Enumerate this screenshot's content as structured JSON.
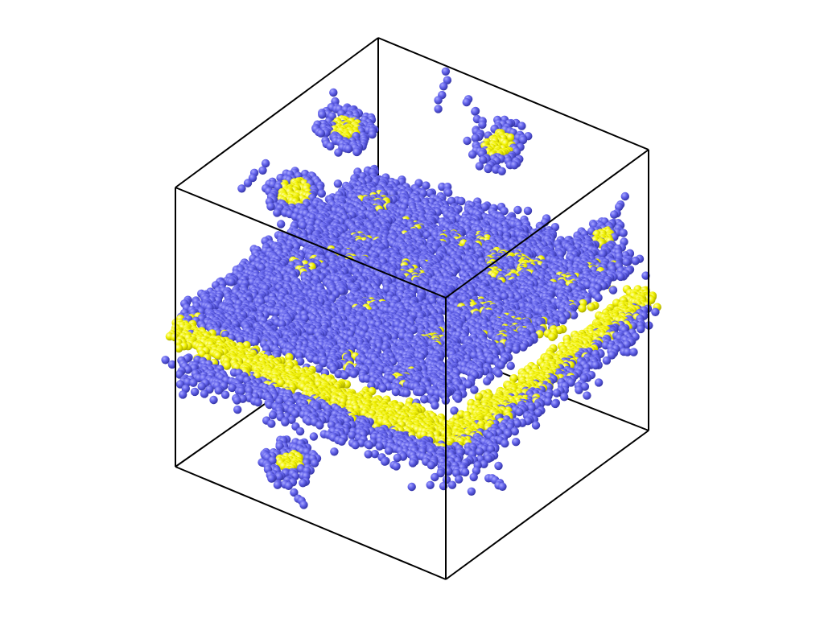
{
  "scene": {
    "background": "#ffffff",
    "edge_color": "#000000",
    "particle_types": [
      {
        "name": "type-a",
        "color": "#5a5ae6",
        "highlight": "#9b9bff",
        "shade": "#2e2e9e"
      },
      {
        "name": "type-b",
        "color": "#f0f000",
        "highlight": "#ffffa8",
        "shade": "#a0a000"
      }
    ]
  }
}
